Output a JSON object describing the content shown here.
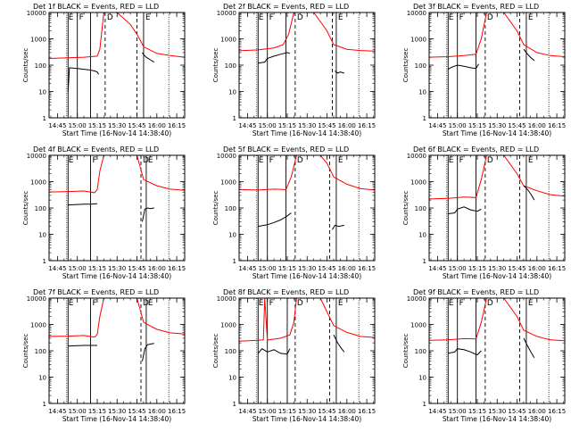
{
  "chart_data": {
    "type": "line",
    "yscale": "log",
    "ylim": [
      1,
      10000
    ],
    "yticks": [
      "1",
      "10",
      "100",
      "1000",
      "10000"
    ],
    "xticks": [
      "14:45",
      "15:00",
      "15:15",
      "15:30",
      "15:45",
      "16:00",
      "16:15"
    ],
    "xlim": [
      "14:38:40",
      "16:21"
    ],
    "ylabel": "Counts/sec",
    "xlabel": "Start Time (16-Nov-14 14:38:40)",
    "legend": "BLACK = Events, RED = LLD",
    "marker_letters": [
      "E",
      "F",
      "D",
      "E"
    ],
    "panels": [
      {
        "title": "Det 1f BLACK = Events, RED = LLD",
        "solid_lines": [
          "14:53",
          "15:00",
          "15:10",
          "15:50"
        ],
        "dashed_lines": [
          "15:21",
          "15:45"
        ],
        "dotted_lines": [
          "14:52",
          "16:09"
        ],
        "series": [
          {
            "name": "RED",
            "color": "#ff0000",
            "times": [
              "14:38",
              "14:53",
              "15:05",
              "15:15",
              "15:17",
              "15:20",
              "15:23",
              "15:30",
              "15:40",
              "15:45",
              "15:50",
              "16:00",
              "16:10",
              "16:21"
            ],
            "values": [
              180,
              190,
              200,
              220,
              400,
              10000,
              10000,
              10000,
              3500,
              1500,
              500,
              280,
              230,
              200
            ]
          },
          {
            "name": "BLACK",
            "color": "#000000",
            "times": [
              "14:53",
              "14:54",
              "15:00",
              "15:05",
              "15:10",
              "15:13",
              "15:15",
              "15:16"
            ],
            "values": [
              10,
              80,
              75,
              70,
              65,
              60,
              55,
              45
            ]
          },
          {
            "name": "BLACK",
            "color": "#000000",
            "times": [
              "15:49",
              "15:50",
              "15:52",
              "15:55",
              "15:58"
            ],
            "values": [
              300,
              250,
              200,
              160,
              130
            ]
          }
        ]
      },
      {
        "title": "Det 2f BLACK = Events, RED = LLD",
        "solid_lines": [
          "14:53",
          "15:00",
          "15:14",
          "15:52"
        ],
        "dashed_lines": [
          "15:21",
          "15:49"
        ],
        "dotted_lines": [
          "14:52",
          "16:09"
        ],
        "series": [
          {
            "name": "RED",
            "color": "#ff0000",
            "times": [
              "14:38",
              "14:53",
              "15:05",
              "15:12",
              "15:16",
              "15:20",
              "15:25",
              "15:35",
              "15:45",
              "15:50",
              "16:00",
              "16:10",
              "16:21"
            ],
            "values": [
              350,
              380,
              450,
              600,
              1500,
              10000,
              10000,
              10000,
              2000,
              600,
              400,
              360,
              340
            ]
          },
          {
            "name": "BLACK",
            "color": "#000000",
            "times": [
              "14:53",
              "14:58",
              "15:00",
              "15:05",
              "15:10",
              "15:15",
              "15:17"
            ],
            "values": [
              120,
              130,
              180,
              220,
              260,
              300,
              280
            ]
          },
          {
            "name": "BLACK",
            "color": "#000000",
            "times": [
              "15:51",
              "15:53",
              "15:55",
              "15:58"
            ],
            "values": [
              60,
              50,
              55,
              50
            ]
          }
        ]
      },
      {
        "title": "Det 3f BLACK = Events, RED = LLD",
        "solid_lines": [
          "14:53",
          "15:00",
          "15:14",
          "15:52"
        ],
        "dashed_lines": [
          "15:21",
          "15:47"
        ],
        "dotted_lines": [
          "14:52",
          "16:09"
        ],
        "series": [
          {
            "name": "RED",
            "color": "#ff0000",
            "times": [
              "14:38",
              "14:53",
              "15:05",
              "15:14",
              "15:18",
              "15:22",
              "15:25",
              "15:35",
              "15:45",
              "15:50",
              "16:00",
              "16:10",
              "16:21"
            ],
            "values": [
              200,
              210,
              230,
              260,
              1000,
              10000,
              10000,
              10000,
              2000,
              600,
              300,
              230,
              210
            ]
          },
          {
            "name": "BLACK",
            "color": "#000000",
            "times": [
              "14:53",
              "14:56",
              "15:00",
              "15:05",
              "15:10",
              "15:14",
              "15:16"
            ],
            "values": [
              70,
              85,
              100,
              90,
              80,
              75,
              110
            ]
          },
          {
            "name": "BLACK",
            "color": "#000000",
            "times": [
              "15:50",
              "15:52",
              "15:55",
              "15:58"
            ],
            "values": [
              400,
              300,
              200,
              150
            ]
          }
        ]
      },
      {
        "title": "Det 4f BLACK = Events, RED = LLD",
        "solid_lines": [
          "14:53",
          "15:10",
          "15:52"
        ],
        "dashed_lines": [
          "15:48"
        ],
        "dotted_lines": [
          "14:52",
          "16:09"
        ],
        "series": [
          {
            "name": "RED",
            "color": "#ff0000",
            "times": [
              "14:38",
              "14:53",
              "15:05",
              "15:13",
              "15:15",
              "15:17",
              "15:20",
              "15:30",
              "15:45",
              "15:50",
              "16:00",
              "16:10",
              "16:21"
            ],
            "values": [
              400,
              420,
              440,
              380,
              500,
              2500,
              10000,
              10000,
              10000,
              1200,
              700,
              520,
              470
            ]
          },
          {
            "name": "BLACK",
            "color": "#000000",
            "times": [
              "14:53",
              "14:58",
              "15:05",
              "15:10",
              "15:15"
            ],
            "values": [
              130,
              135,
              140,
              140,
              145
            ]
          },
          {
            "name": "BLACK",
            "color": "#000000",
            "times": [
              "15:49",
              "15:51",
              "15:53",
              "15:55",
              "15:58"
            ],
            "values": [
              30,
              90,
              100,
              95,
              100
            ]
          }
        ]
      },
      {
        "title": "Det 5f BLACK = Events, RED = LLD",
        "solid_lines": [
          "14:53",
          "15:00",
          "15:14",
          "15:52"
        ],
        "dashed_lines": [
          "15:21",
          "15:47"
        ],
        "dotted_lines": [
          "14:52",
          "16:09"
        ],
        "series": [
          {
            "name": "RED",
            "color": "#ff0000",
            "times": [
              "14:38",
              "14:53",
              "15:05",
              "15:14",
              "15:18",
              "15:22",
              "15:30",
              "15:40",
              "15:45",
              "15:50",
              "16:00",
              "16:10",
              "16:21"
            ],
            "values": [
              500,
              480,
              520,
              500,
              1500,
              10000,
              10000,
              10000,
              5000,
              1500,
              800,
              550,
              480
            ]
          },
          {
            "name": "BLACK",
            "color": "#000000",
            "times": [
              "14:53",
              "15:00",
              "15:05",
              "15:10",
              "15:15",
              "15:18"
            ],
            "values": [
              20,
              23,
              28,
              35,
              50,
              65
            ]
          },
          {
            "name": "BLACK",
            "color": "#000000",
            "times": [
              "15:49",
              "15:51",
              "15:54",
              "15:58"
            ],
            "values": [
              15,
              22,
              20,
              22
            ]
          }
        ]
      },
      {
        "title": "Det 6f BLACK = Events, RED = LLD",
        "solid_lines": [
          "14:53",
          "15:00",
          "15:14",
          "15:52"
        ],
        "dashed_lines": [
          "15:21",
          "15:47"
        ],
        "dotted_lines": [
          "14:52",
          "16:09"
        ],
        "series": [
          {
            "name": "RED",
            "color": "#ff0000",
            "times": [
              "14:38",
              "14:53",
              "15:05",
              "15:14",
              "15:18",
              "15:22",
              "15:25",
              "15:35",
              "15:45",
              "15:50",
              "16:00",
              "16:10",
              "16:21"
            ],
            "values": [
              220,
              230,
              260,
              250,
              1200,
              10000,
              10000,
              10000,
              2000,
              700,
              450,
              320,
              280
            ]
          },
          {
            "name": "BLACK",
            "color": "#000000",
            "times": [
              "14:53",
              "14:58",
              "15:00",
              "15:05",
              "15:10",
              "15:15",
              "15:18"
            ],
            "values": [
              60,
              65,
              90,
              110,
              85,
              75,
              90
            ]
          },
          {
            "name": "BLACK",
            "color": "#000000",
            "times": [
              "15:50",
              "15:53",
              "15:56",
              "15:58"
            ],
            "values": [
              700,
              500,
              300,
              200
            ]
          }
        ]
      },
      {
        "title": "Det 7f BLACK = Events, RED = LLD",
        "solid_lines": [
          "14:53",
          "15:10",
          "15:52"
        ],
        "dashed_lines": [
          "15:48"
        ],
        "dotted_lines": [
          "14:52",
          "16:09"
        ],
        "series": [
          {
            "name": "RED",
            "color": "#ff0000",
            "times": [
              "14:38",
              "14:53",
              "15:05",
              "15:13",
              "15:15",
              "15:17",
              "15:20",
              "15:30",
              "15:45",
              "15:50",
              "16:00",
              "16:10",
              "16:21"
            ],
            "values": [
              350,
              360,
              380,
              330,
              420,
              2000,
              10000,
              10000,
              10000,
              1200,
              650,
              480,
              430
            ]
          },
          {
            "name": "BLACK",
            "color": "#000000",
            "times": [
              "14:53",
              "14:58",
              "15:05",
              "15:10",
              "15:15"
            ],
            "values": [
              150,
              155,
              160,
              160,
              160
            ]
          },
          {
            "name": "BLACK",
            "color": "#000000",
            "times": [
              "15:49",
              "15:51",
              "15:53",
              "15:55",
              "15:58"
            ],
            "values": [
              40,
              120,
              170,
              180,
              190
            ]
          }
        ]
      },
      {
        "title": "Det 8f BLACK = Events, RED = LLD",
        "solid_lines": [
          "14:53",
          "15:00",
          "15:15",
          "15:52"
        ],
        "dashed_lines": [
          "15:21",
          "15:47"
        ],
        "dotted_lines": [
          "14:52",
          "16:09"
        ],
        "series": [
          {
            "name": "RED",
            "color": "#ff0000",
            "times": [
              "14:38",
              "14:53",
              "14:57",
              "14:58",
              "15:00",
              "15:01",
              "15:10",
              "15:17",
              "15:20",
              "15:22",
              "15:30",
              "15:40",
              "15:45",
              "15:50",
              "16:00",
              "16:10",
              "16:21"
            ],
            "values": [
              230,
              250,
              260,
              10000,
              250,
              260,
              300,
              400,
              1200,
              10000,
              10000,
              10000,
              3000,
              900,
              500,
              350,
              320
            ]
          },
          {
            "name": "BLACK",
            "color": "#000000",
            "times": [
              "14:53",
              "14:56",
              "15:00",
              "15:05",
              "15:10",
              "15:15",
              "15:17"
            ],
            "values": [
              80,
              120,
              90,
              110,
              80,
              75,
              120
            ]
          },
          {
            "name": "BLACK",
            "color": "#000000",
            "times": [
              "15:50",
              "15:53",
              "15:56",
              "15:58"
            ],
            "values": [
              400,
              200,
              120,
              90
            ]
          }
        ]
      },
      {
        "title": "Det 9f BLACK = Events, RED = LLD",
        "solid_lines": [
          "14:53",
          "15:00",
          "15:14",
          "15:52"
        ],
        "dashed_lines": [
          "15:21",
          "15:47"
        ],
        "dotted_lines": [
          "14:52",
          "16:09"
        ],
        "series": [
          {
            "name": "RED",
            "color": "#ff0000",
            "times": [
              "14:38",
              "14:53",
              "15:05",
              "15:14",
              "15:18",
              "15:22",
              "15:25",
              "15:35",
              "15:45",
              "15:50",
              "16:00",
              "16:10",
              "16:21"
            ],
            "values": [
              250,
              260,
              290,
              280,
              1200,
              10000,
              10000,
              10000,
              2000,
              600,
              350,
              260,
              240
            ]
          },
          {
            "name": "BLACK",
            "color": "#000000",
            "times": [
              "14:53",
              "14:58",
              "15:00",
              "15:05",
              "15:10",
              "15:15",
              "15:18"
            ],
            "values": [
              80,
              90,
              120,
              110,
              90,
              70,
              100
            ]
          },
          {
            "name": "BLACK",
            "color": "#000000",
            "times": [
              "15:50",
              "15:53",
              "15:56",
              "15:58"
            ],
            "values": [
              300,
              150,
              80,
              55
            ]
          }
        ]
      }
    ]
  }
}
